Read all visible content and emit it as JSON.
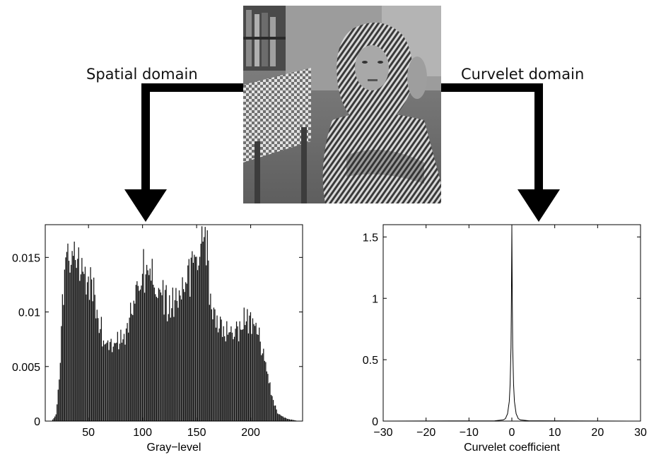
{
  "labels": {
    "spatial": "Spatial domain",
    "curvelet": "Curvelet domain"
  },
  "photo": {
    "subject": "grayscale photo of a woman wearing a striped headscarf, seated"
  },
  "chart_data": [
    {
      "type": "bar",
      "xlabel": "Gray−level",
      "ylabel": "",
      "xlim": [
        10,
        248
      ],
      "ylim": [
        0,
        0.018
      ],
      "xticks": [
        50,
        100,
        150,
        200
      ],
      "yticks": [
        0,
        0.005,
        0.01,
        0.015
      ],
      "ytick_labels": [
        "0",
        "0.005",
        "0.01",
        "0.015"
      ],
      "envelope": {
        "x": [
          16,
          20,
          23,
          26,
          28,
          30,
          35,
          40,
          45,
          50,
          55,
          60,
          65,
          70,
          75,
          80,
          85,
          90,
          95,
          100,
          103,
          106,
          110,
          115,
          120,
          125,
          130,
          135,
          140,
          145,
          150,
          155,
          158,
          160,
          163,
          166,
          170,
          175,
          180,
          185,
          190,
          195,
          200,
          205,
          210,
          215,
          220,
          225,
          230,
          235,
          240,
          244
        ],
        "y": [
          0,
          0.0006,
          0.004,
          0.012,
          0.0155,
          0.016,
          0.0158,
          0.015,
          0.0147,
          0.0143,
          0.0125,
          0.01,
          0.008,
          0.0077,
          0.008,
          0.0082,
          0.009,
          0.0105,
          0.0125,
          0.0147,
          0.015,
          0.0143,
          0.0138,
          0.0127,
          0.0118,
          0.0113,
          0.0116,
          0.0123,
          0.0133,
          0.0147,
          0.0158,
          0.0169,
          0.0175,
          0.0165,
          0.012,
          0.0102,
          0.0094,
          0.0087,
          0.0084,
          0.0088,
          0.0092,
          0.0098,
          0.0101,
          0.009,
          0.0073,
          0.005,
          0.0023,
          0.0008,
          0.0004,
          0.0002,
          0.0001,
          0
        ]
      },
      "peak": {
        "x": 158,
        "y": 0.0178
      }
    },
    {
      "type": "line",
      "xlabel": "Curvelet coefficient",
      "ylabel": "",
      "xlim": [
        -30,
        30
      ],
      "ylim": [
        0,
        1.6
      ],
      "xticks": [
        -30,
        -20,
        -10,
        0,
        10,
        20,
        30
      ],
      "xtick_labels": [
        "−30",
        "−20",
        "−10",
        "0",
        "10",
        "20",
        "30"
      ],
      "yticks": [
        0,
        0.5,
        1,
        1.5
      ],
      "ytick_labels": [
        "0",
        "0.5",
        "1",
        "1.5"
      ],
      "x": [
        -30,
        -4,
        -2,
        -1.5,
        -1,
        -0.6,
        -0.4,
        -0.2,
        -0.1,
        0,
        0.1,
        0.2,
        0.4,
        0.6,
        1,
        1.5,
        2,
        4,
        30
      ],
      "y": [
        0,
        0.002,
        0.01,
        0.02,
        0.06,
        0.16,
        0.3,
        0.6,
        1.0,
        1.58,
        1.0,
        0.6,
        0.3,
        0.16,
        0.06,
        0.02,
        0.01,
        0.002,
        0
      ]
    }
  ]
}
